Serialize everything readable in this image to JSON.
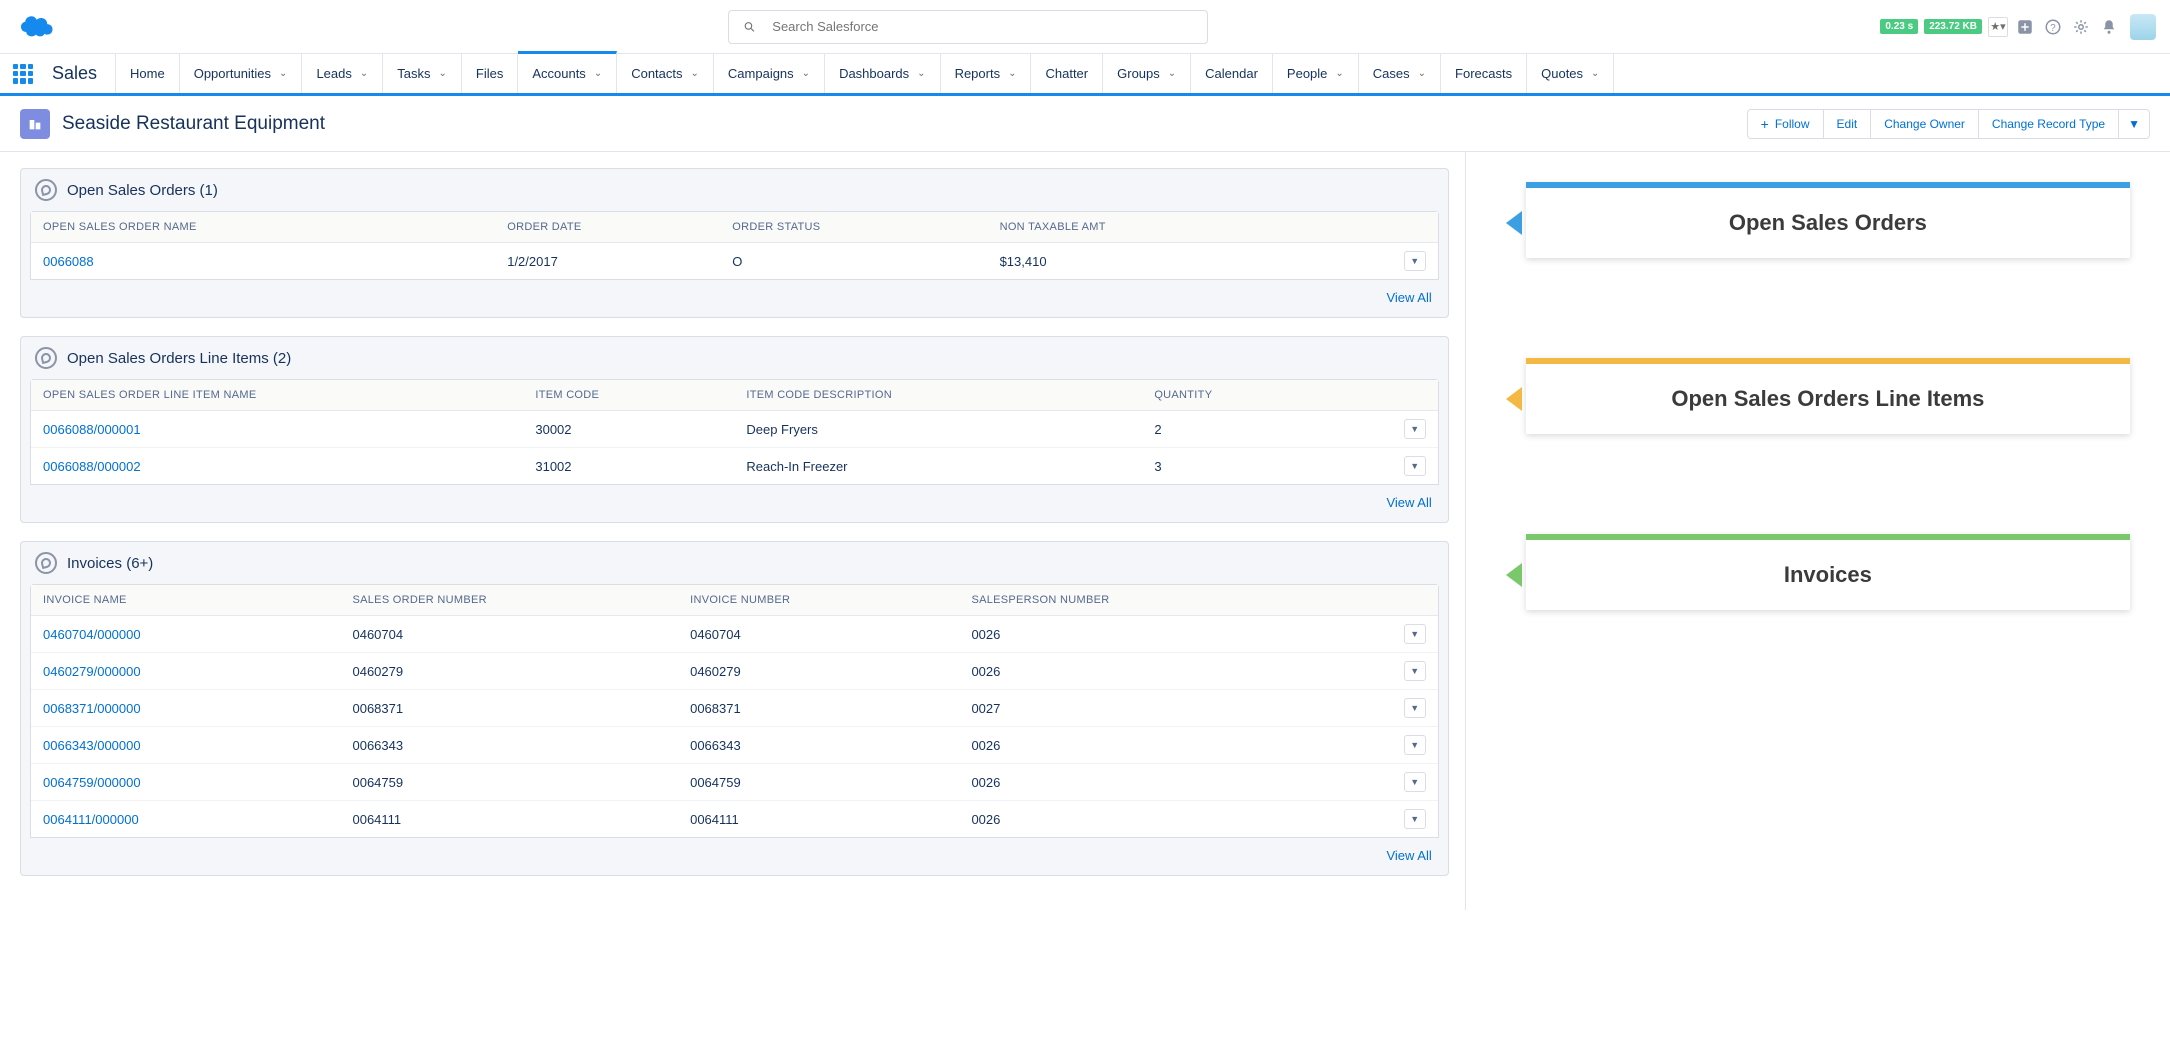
{
  "search": {
    "placeholder": "Search Salesforce"
  },
  "perf": {
    "time": "0.23 s",
    "size": "223.72 KB"
  },
  "app_name": "Sales",
  "nav": [
    {
      "label": "Home",
      "dd": false
    },
    {
      "label": "Opportunities",
      "dd": true
    },
    {
      "label": "Leads",
      "dd": true
    },
    {
      "label": "Tasks",
      "dd": true
    },
    {
      "label": "Files",
      "dd": false
    },
    {
      "label": "Accounts",
      "dd": true,
      "active": true
    },
    {
      "label": "Contacts",
      "dd": true
    },
    {
      "label": "Campaigns",
      "dd": true
    },
    {
      "label": "Dashboards",
      "dd": true
    },
    {
      "label": "Reports",
      "dd": true
    },
    {
      "label": "Chatter",
      "dd": false
    },
    {
      "label": "Groups",
      "dd": true
    },
    {
      "label": "Calendar",
      "dd": false
    },
    {
      "label": "People",
      "dd": true
    },
    {
      "label": "Cases",
      "dd": true
    },
    {
      "label": "Forecasts",
      "dd": false
    },
    {
      "label": "Quotes",
      "dd": true
    }
  ],
  "record": {
    "title": "Seaside Restaurant Equipment",
    "actions": [
      "Follow",
      "Edit",
      "Change Owner",
      "Change Record Type"
    ]
  },
  "cards": {
    "oso": {
      "title": "Open Sales Orders (1)",
      "cols": [
        "OPEN SALES ORDER NAME",
        "ORDER DATE",
        "ORDER STATUS",
        "NON TAXABLE AMT"
      ],
      "rows": [
        {
          "c0": "0066088",
          "c1": "1/2/2017",
          "c2": "O",
          "c3": "$13,410"
        }
      ],
      "view_all": "View All"
    },
    "osoli": {
      "title": "Open Sales Orders Line Items (2)",
      "cols": [
        "OPEN SALES ORDER LINE ITEM NAME",
        "ITEM CODE",
        "ITEM CODE DESCRIPTION",
        "QUANTITY"
      ],
      "rows": [
        {
          "c0": "0066088/000001",
          "c1": "30002",
          "c2": "Deep Fryers",
          "c3": "2"
        },
        {
          "c0": "0066088/000002",
          "c1": "31002",
          "c2": "Reach-In Freezer",
          "c3": "3"
        }
      ],
      "view_all": "View All"
    },
    "inv": {
      "title": "Invoices (6+)",
      "cols": [
        "INVOICE NAME",
        "SALES ORDER NUMBER",
        "INVOICE NUMBER",
        "SALESPERSON NUMBER"
      ],
      "rows": [
        {
          "c0": "0460704/000000",
          "c1": "0460704",
          "c2": "0460704",
          "c3": "0026"
        },
        {
          "c0": "0460279/000000",
          "c1": "0460279",
          "c2": "0460279",
          "c3": "0026"
        },
        {
          "c0": "0068371/000000",
          "c1": "0068371",
          "c2": "0068371",
          "c3": "0027"
        },
        {
          "c0": "0066343/000000",
          "c1": "0066343",
          "c2": "0066343",
          "c3": "0026"
        },
        {
          "c0": "0064759/000000",
          "c1": "0064759",
          "c2": "0064759",
          "c3": "0026"
        },
        {
          "c0": "0064111/000000",
          "c1": "0064111",
          "c2": "0064111",
          "c3": "0026"
        }
      ],
      "view_all": "View All"
    }
  },
  "callouts": [
    {
      "label": "Open Sales Orders",
      "color": "#3b9fe2"
    },
    {
      "label": "Open Sales Orders Line Items",
      "color": "#f3b944"
    },
    {
      "label": "Invoices",
      "color": "#7bc86c"
    }
  ]
}
